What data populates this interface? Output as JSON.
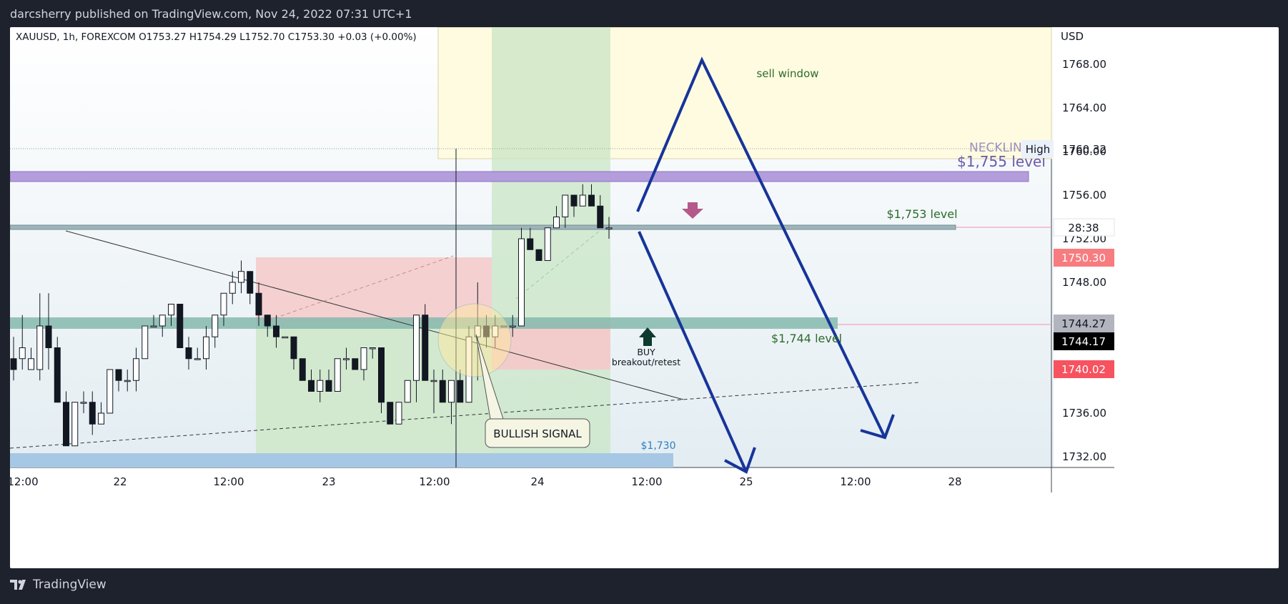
{
  "header": {
    "publish_line": "darcsherry published on TradingView.com, Nov 24, 2022 07:31 UTC+1"
  },
  "footer": {
    "brand": "TradingView",
    "logo_icon": "tradingview-logo-icon"
  },
  "chart_data": {
    "type": "candlestick",
    "symbol_line": "XAUUSD, 1h, FOREXCOM  O1753.27  H1754.29  L1752.70  C1753.30  +0.03 (+0.00%)",
    "currency": "USD",
    "y_ticks": [
      "1768.00",
      "1764.00",
      "1760.00",
      "1756.00",
      "1752.00",
      "1748.00",
      "1744.00",
      "1740.00",
      "1736.00",
      "1732.00"
    ],
    "x_ticks": [
      "12:00",
      "22",
      "12:00",
      "23",
      "12:00",
      "24",
      "12:00",
      "25",
      "12:00",
      "28"
    ],
    "ylim": [
      1730.6,
      1771.3
    ],
    "price_badges": {
      "high_label": "High",
      "high_value": "1760.32",
      "countdown": "28:38",
      "red_upper": "1750.30",
      "grey_level": "1744.27",
      "last_price": "1744.17",
      "red_lower": "1740.02"
    },
    "annotations": {
      "sell_window": "sell window",
      "neckline": "NECKLINE",
      "level_1755": "$1,755 level",
      "level_1753": "$1,753 level",
      "level_1744": "$1,744 level",
      "buy_line1": "BUY",
      "buy_line2": "breakout/retest",
      "bullish_signal": "BULLISH SIGNAL",
      "level_1730": "$1,730"
    },
    "candles": [
      [
        1741,
        1743,
        1739,
        1740
      ],
      [
        1741,
        1745,
        1740,
        1742
      ],
      [
        1740,
        1742,
        1740,
        1741
      ],
      [
        1740,
        1747,
        1739,
        1744
      ],
      [
        1744,
        1747,
        1740,
        1742
      ],
      [
        1742,
        1743,
        1737,
        1737
      ],
      [
        1737,
        1738,
        1733,
        1733
      ],
      [
        1733,
        1737,
        1733,
        1737
      ],
      [
        1737,
        1738,
        1736,
        1737
      ],
      [
        1737,
        1738,
        1734,
        1735
      ],
      [
        1735,
        1737,
        1735,
        1736
      ],
      [
        1736,
        1740,
        1736,
        1740
      ],
      [
        1740,
        1740,
        1738,
        1739
      ],
      [
        1739,
        1740,
        1738,
        1739
      ],
      [
        1739,
        1742,
        1738,
        1741
      ],
      [
        1741,
        1744,
        1741,
        1744
      ],
      [
        1744,
        1745,
        1744,
        1744
      ],
      [
        1744,
        1745,
        1743,
        1745
      ],
      [
        1745,
        1746,
        1744,
        1746
      ],
      [
        1746,
        1746,
        1742,
        1742
      ],
      [
        1742,
        1743,
        1740,
        1741
      ],
      [
        1741,
        1742,
        1741,
        1741
      ],
      [
        1741,
        1744,
        1740,
        1743
      ],
      [
        1743,
        1745,
        1742,
        1745
      ],
      [
        1745,
        1747,
        1744,
        1747
      ],
      [
        1747,
        1749,
        1746,
        1748
      ],
      [
        1748,
        1750,
        1747,
        1749
      ],
      [
        1749,
        1749,
        1746,
        1747
      ],
      [
        1747,
        1748,
        1744,
        1745
      ],
      [
        1745,
        1745,
        1743,
        1744
      ],
      [
        1744,
        1745,
        1742,
        1743
      ],
      [
        1743,
        1743,
        1743,
        1743
      ],
      [
        1743,
        1743,
        1740,
        1741
      ],
      [
        1741,
        1741,
        1739,
        1739
      ],
      [
        1739,
        1740,
        1738,
        1738
      ],
      [
        1738,
        1740,
        1737,
        1739
      ],
      [
        1739,
        1740,
        1738,
        1738
      ],
      [
        1738,
        1741,
        1738,
        1741
      ],
      [
        1741,
        1742,
        1740,
        1741
      ],
      [
        1741,
        1741,
        1740,
        1740
      ],
      [
        1740,
        1742,
        1739,
        1742
      ],
      [
        1742,
        1742,
        1741,
        1742
      ],
      [
        1742,
        1742,
        1736,
        1737
      ],
      [
        1737,
        1737,
        1735,
        1735
      ],
      [
        1735,
        1737,
        1735,
        1737
      ],
      [
        1737,
        1739,
        1737,
        1739
      ],
      [
        1739,
        1745,
        1737,
        1745
      ],
      [
        1745,
        1746,
        1739,
        1739
      ],
      [
        1739,
        1740,
        1736,
        1739
      ],
      [
        1739,
        1740,
        1737,
        1737
      ],
      [
        1737,
        1739,
        1735,
        1739
      ],
      [
        1739,
        1740,
        1737,
        1737
      ],
      [
        1737,
        1744,
        1737,
        1743
      ],
      [
        1743,
        1748,
        1739,
        1744
      ],
      [
        1744,
        1745,
        1742,
        1743
      ],
      [
        1743,
        1745,
        1742,
        1744
      ],
      [
        1744,
        1744,
        1744,
        1744
      ],
      [
        1744,
        1745,
        1743,
        1744
      ],
      [
        1744,
        1753,
        1744,
        1752
      ],
      [
        1752,
        1753,
        1751,
        1751
      ],
      [
        1751,
        1751,
        1750,
        1750
      ],
      [
        1750,
        1753,
        1750,
        1753
      ],
      [
        1753,
        1755,
        1753,
        1754
      ],
      [
        1754,
        1756,
        1753,
        1756
      ],
      [
        1756,
        1756,
        1754,
        1755
      ],
      [
        1755,
        1757,
        1755,
        1756
      ],
      [
        1756,
        1757,
        1755,
        1755
      ],
      [
        1755,
        1756,
        1753,
        1753
      ],
      [
        1753,
        1754,
        1752,
        1753
      ]
    ]
  }
}
